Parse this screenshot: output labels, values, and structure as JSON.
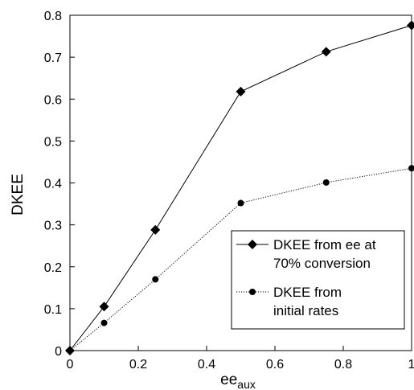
{
  "chart_data": {
    "type": "line",
    "xlabel_main": "ee",
    "xlabel_sub": "aux",
    "ylabel": "DKEE",
    "xlim": [
      0,
      1
    ],
    "ylim": [
      0,
      0.8
    ],
    "xticks": [
      "0",
      "0.2",
      "0.4",
      "0.6",
      "0.8",
      "1"
    ],
    "yticks": [
      "0",
      "0.1",
      "0.2",
      "0.3",
      "0.4",
      "0.5",
      "0.6",
      "0.7",
      "0.8"
    ],
    "grid": false,
    "legend_position": "bottom-right",
    "series": [
      {
        "name_line1": "DKEE from ee at",
        "name_line2": "70% conversion",
        "marker": "diamond",
        "line_style": "solid",
        "x": [
          0,
          0.1,
          0.25,
          0.5,
          0.75,
          1
        ],
        "y": [
          0,
          0.105,
          0.288,
          0.618,
          0.713,
          0.776
        ]
      },
      {
        "name_line1": "DKEE from",
        "name_line2": "initial rates",
        "marker": "circle",
        "line_style": "dotted",
        "x": [
          0,
          0.1,
          0.25,
          0.5,
          0.75,
          1
        ],
        "y": [
          0,
          0.066,
          0.17,
          0.352,
          0.401,
          0.435
        ]
      }
    ]
  }
}
